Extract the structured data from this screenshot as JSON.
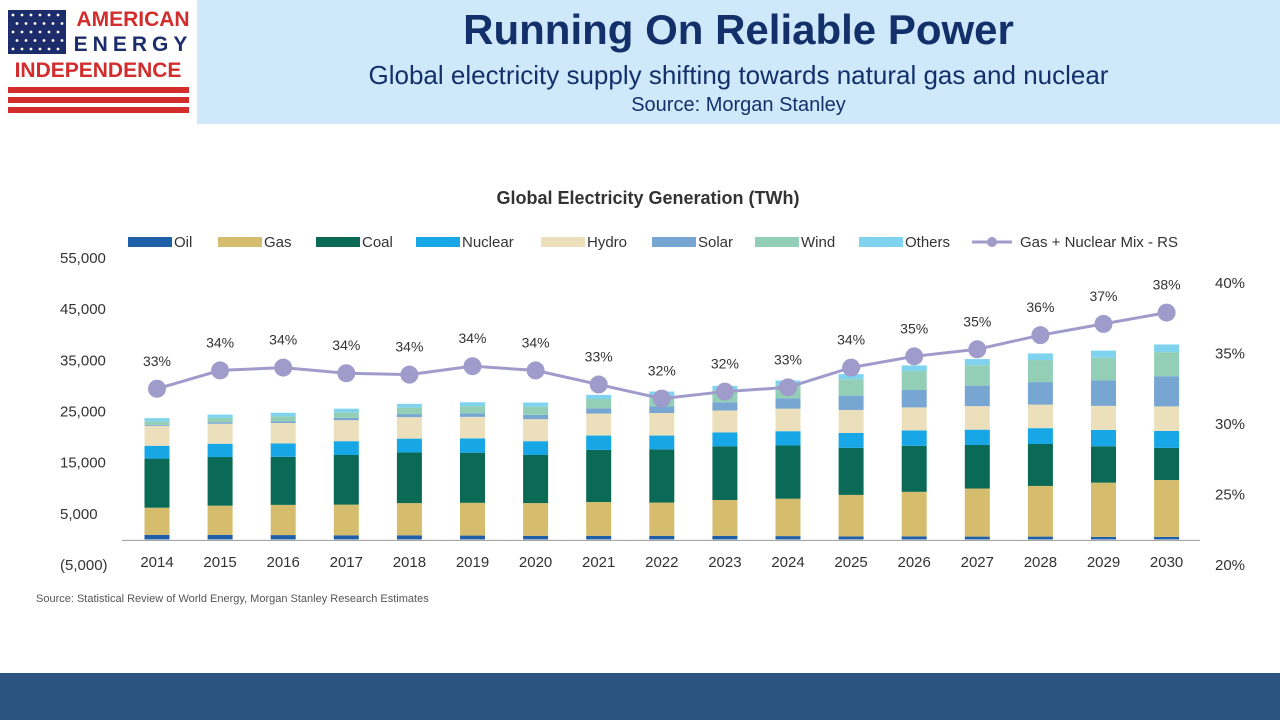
{
  "brand": {
    "line1": "AMERICAN",
    "line2": "ENERGY",
    "line3": "INDEPENDENCE",
    "colors": {
      "red": "#d22c2c",
      "blue": "#1d2d6b"
    }
  },
  "header": {
    "title": "Running On Reliable Power",
    "subtitle": "Global electricity supply shifting towards natural gas and nuclear",
    "source": "Source: Morgan Stanley"
  },
  "chart_data": {
    "type": "bar",
    "stacked": true,
    "title": "Global Electricity Generation (TWh)",
    "categories": [
      "2014",
      "2015",
      "2016",
      "2017",
      "2018",
      "2019",
      "2020",
      "2021",
      "2022",
      "2023",
      "2024",
      "2025",
      "2026",
      "2027",
      "2028",
      "2029",
      "2030"
    ],
    "series": [
      {
        "name": "Oil",
        "color": "#1f5fa8",
        "values": [
          900,
          900,
          850,
          800,
          800,
          750,
          700,
          700,
          700,
          700,
          650,
          600,
          600,
          550,
          550,
          500,
          500
        ]
      },
      {
        "name": "Gas",
        "color": "#d6bd6e",
        "values": [
          5300,
          5700,
          5900,
          6000,
          6300,
          6400,
          6400,
          6600,
          6500,
          7000,
          7300,
          8100,
          8700,
          9400,
          9900,
          10600,
          11100
        ]
      },
      {
        "name": "Coal",
        "color": "#0b6a55",
        "values": [
          9600,
          9500,
          9400,
          9700,
          9900,
          9800,
          9400,
          10200,
          10400,
          10500,
          10400,
          9200,
          9000,
          8500,
          8200,
          7100,
          6300
        ]
      },
      {
        "name": "Nuclear",
        "color": "#17a7e6",
        "values": [
          2500,
          2600,
          2600,
          2700,
          2700,
          2800,
          2700,
          2800,
          2700,
          2700,
          2800,
          2900,
          3000,
          3000,
          3100,
          3200,
          3300
        ]
      },
      {
        "name": "Hydro",
        "color": "#ece0bc",
        "values": [
          3900,
          3900,
          4000,
          4100,
          4200,
          4200,
          4300,
          4300,
          4400,
          4300,
          4400,
          4500,
          4500,
          4600,
          4600,
          4700,
          4800
        ]
      },
      {
        "name": "Solar",
        "color": "#78a6d2",
        "values": [
          200,
          300,
          350,
          450,
          600,
          700,
          850,
          1000,
          1300,
          1600,
          2000,
          2800,
          3400,
          4000,
          4400,
          5000,
          5900
        ]
      },
      {
        "name": "Wind",
        "color": "#92cfb6",
        "values": [
          700,
          850,
          950,
          1100,
          1250,
          1400,
          1600,
          1850,
          2050,
          2300,
          2600,
          3200,
          3700,
          4000,
          4300,
          4400,
          4700
        ]
      },
      {
        "name": "Others",
        "color": "#7fd3ee",
        "values": [
          600,
          650,
          700,
          700,
          750,
          750,
          800,
          800,
          850,
          900,
          900,
          1000,
          1100,
          1200,
          1300,
          1400,
          1500
        ]
      },
      {
        "name": "Gas + Nuclear Mix - RS",
        "type": "line",
        "axis": "right",
        "color": "#9f9ccb",
        "values": [
          32.5,
          33.8,
          34.0,
          33.6,
          33.5,
          34.1,
          33.8,
          32.8,
          31.8,
          32.3,
          32.6,
          34.0,
          34.8,
          35.3,
          36.3,
          37.1,
          37.9
        ],
        "labels": [
          "33%",
          "34%",
          "34%",
          "34%",
          "34%",
          "34%",
          "34%",
          "33%",
          "32%",
          "32%",
          "33%",
          "34%",
          "35%",
          "35%",
          "36%",
          "37%",
          "38%"
        ]
      }
    ],
    "ylim": [
      -5000,
      55000
    ],
    "yticks": [
      "55,000",
      "45,000",
      "35,000",
      "25,000",
      "15,000",
      "5,000",
      "(5,000)"
    ],
    "ytick_values": [
      55000,
      45000,
      35000,
      25000,
      15000,
      5000,
      -5000
    ],
    "y2lim": [
      20,
      40
    ],
    "y2ticks": [
      "40%",
      "35%",
      "30%",
      "25%",
      "20%"
    ],
    "y2tick_values": [
      40,
      35,
      30,
      25,
      20
    ],
    "grid": false,
    "legend": "top",
    "source_note": "Source: Statistical Review of World Energy, Morgan Stanley Research Estimates"
  }
}
